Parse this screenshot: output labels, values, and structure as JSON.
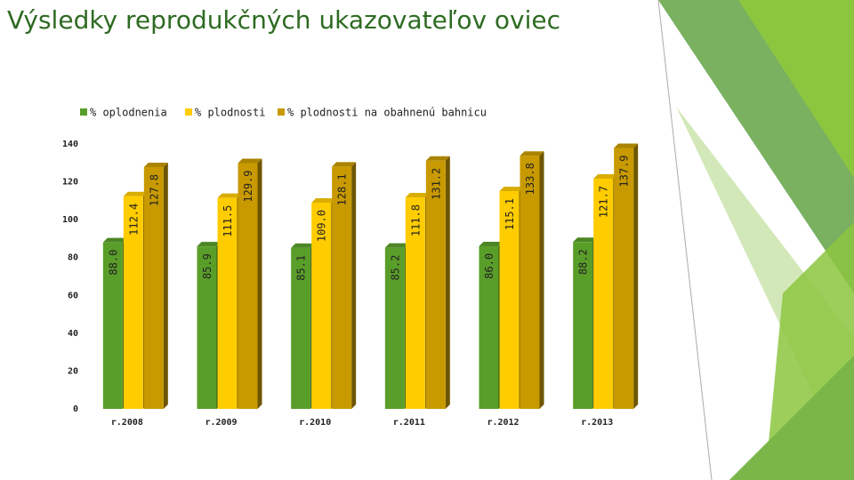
{
  "chart_data": {
    "type": "bar3d",
    "title": "Výsledky reprodukčných ukazovateľov oviec",
    "categories": [
      "r.2008",
      "r.2009",
      "r.2010",
      "r.2011",
      "r.2012",
      "r.2013"
    ],
    "series": [
      {
        "name": "% oplodnenia",
        "color": "#5a9e2a",
        "values": [
          88.0,
          85.9,
          85.1,
          85.2,
          86.0,
          88.2
        ],
        "value_labels": [
          "88.0",
          "85.9",
          "85.1",
          "85.2",
          "86.0",
          "88.2"
        ]
      },
      {
        "name": "% plodnosti",
        "color": "#ffcc00",
        "values": [
          112.4,
          111.5,
          109.0,
          111.8,
          115.1,
          121.7
        ],
        "value_labels": [
          "112.4",
          "111.5",
          "109.0",
          "111.8",
          "115.1",
          "121.7"
        ]
      },
      {
        "name": "% plodnosti na obahnenú bahnicu",
        "color": "#c89a00",
        "values": [
          127.8,
          129.9,
          128.1,
          131.2,
          133.8,
          137.9
        ],
        "value_labels": [
          "127.8",
          "129.9",
          "128.1",
          "131.2",
          "133.8",
          "137.9"
        ]
      }
    ],
    "ylim": [
      0,
      140
    ],
    "yticks": [
      0,
      20,
      40,
      60,
      80,
      100,
      120,
      140
    ],
    "legend": "top"
  }
}
